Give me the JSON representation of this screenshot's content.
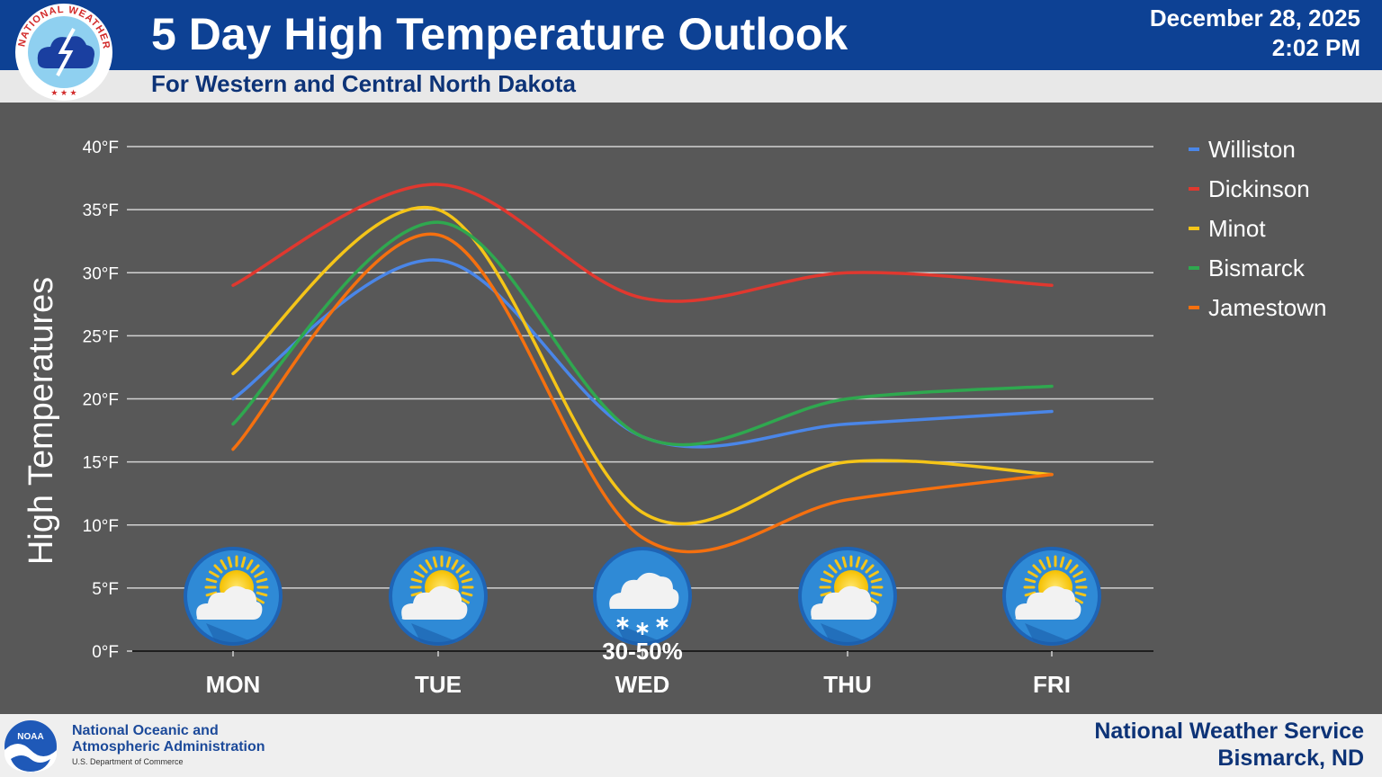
{
  "header": {
    "title": "5 Day High Temperature Outlook",
    "subtitle": "For Western and Central North Dakota",
    "date": "December 28, 2025",
    "time": "2:02 PM",
    "logo_text": "NATIONAL WEATHER SERVICE"
  },
  "footer": {
    "org_line1": "National Oceanic and",
    "org_line2": "Atmospheric Administration",
    "dept": "U.S. Department of Commerce",
    "noaa_logo_text": "NOAA",
    "office_line1": "National Weather Service",
    "office_line2": "Bismarck, ND"
  },
  "chart_data": {
    "type": "line",
    "ylabel": "High Temperatures",
    "ylim": [
      0,
      40
    ],
    "yticks": [
      "0°F",
      "5°F",
      "10°F",
      "15°F",
      "20°F",
      "25°F",
      "30°F",
      "35°F",
      "40°F"
    ],
    "categories": [
      "MON",
      "TUE",
      "WED",
      "THU",
      "FRI"
    ],
    "grid": true,
    "legend_position": "right",
    "series": [
      {
        "name": "Williston",
        "color": "#4a86e8",
        "values": [
          20,
          31,
          17,
          18,
          19
        ]
      },
      {
        "name": "Dickinson",
        "color": "#e0382f",
        "values": [
          29,
          37,
          28,
          30,
          29
        ]
      },
      {
        "name": "Minot",
        "color": "#f5c518",
        "values": [
          22,
          35,
          11,
          15,
          14
        ]
      },
      {
        "name": "Bismarck",
        "color": "#2fa84f",
        "values": [
          18,
          34,
          17,
          20,
          21
        ]
      },
      {
        "name": "Jamestown",
        "color": "#f5700f",
        "values": [
          16,
          33,
          9,
          12,
          14
        ]
      }
    ],
    "weather_icons": [
      {
        "day": "MON",
        "icon": "partly-sunny-icon",
        "label": ""
      },
      {
        "day": "TUE",
        "icon": "partly-sunny-icon",
        "label": ""
      },
      {
        "day": "WED",
        "icon": "snow-icon",
        "label": "30-50%"
      },
      {
        "day": "THU",
        "icon": "partly-sunny-icon",
        "label": ""
      },
      {
        "day": "FRI",
        "icon": "partly-sunny-icon",
        "label": ""
      }
    ]
  }
}
